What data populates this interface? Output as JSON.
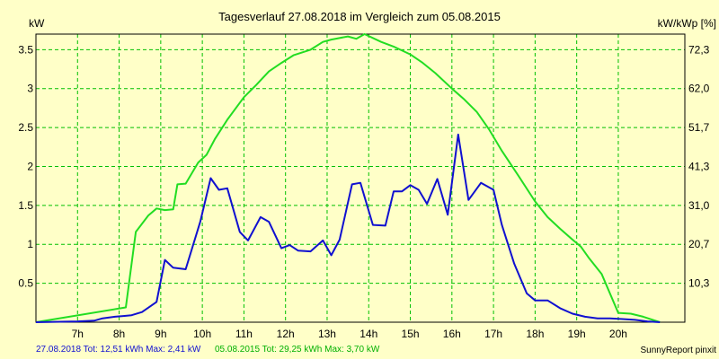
{
  "chart_data": {
    "type": "line",
    "title": "Tagesverlauf 27.08.2018 im Vergleich zum 05.08.2015",
    "y_left_label": "kW",
    "y_right_label": "kW/kWp [%]",
    "xlim": [
      6,
      21.6
    ],
    "ylim": [
      0,
      3.7
    ],
    "grid": true,
    "x_ticks": [
      {
        "v": 7,
        "label": "7h"
      },
      {
        "v": 8,
        "label": "8h"
      },
      {
        "v": 9,
        "label": "9h"
      },
      {
        "v": 10,
        "label": "10h"
      },
      {
        "v": 11,
        "label": "11h"
      },
      {
        "v": 12,
        "label": "12h"
      },
      {
        "v": 13,
        "label": "13h"
      },
      {
        "v": 14,
        "label": "14h"
      },
      {
        "v": 15,
        "label": "15h"
      },
      {
        "v": 16,
        "label": "16h"
      },
      {
        "v": 17,
        "label": "17h"
      },
      {
        "v": 18,
        "label": "18h"
      },
      {
        "v": 19,
        "label": "19h"
      },
      {
        "v": 20,
        "label": "20h"
      }
    ],
    "y_ticks_left": [
      {
        "v": 0.5,
        "label": "0.5"
      },
      {
        "v": 1,
        "label": "1"
      },
      {
        "v": 1.5,
        "label": "1.5"
      },
      {
        "v": 2,
        "label": "2"
      },
      {
        "v": 2.5,
        "label": "2.5"
      },
      {
        "v": 3,
        "label": "3"
      },
      {
        "v": 3.5,
        "label": "3.5"
      }
    ],
    "y_ticks_right": [
      {
        "v": 0.5,
        "label": "10,3"
      },
      {
        "v": 1,
        "label": "20,7"
      },
      {
        "v": 1.5,
        "label": "31,0"
      },
      {
        "v": 2,
        "label": "41,3"
      },
      {
        "v": 2.5,
        "label": "51,7"
      },
      {
        "v": 3,
        "label": "62,0"
      },
      {
        "v": 3.5,
        "label": "72,3"
      }
    ],
    "series": [
      {
        "name": "05.08.2015",
        "color": "#22DD22",
        "x": [
          6.0,
          8.16,
          8.4,
          8.7,
          8.9,
          9.1,
          9.3,
          9.4,
          9.6,
          9.9,
          10.1,
          10.3,
          10.6,
          11.0,
          11.3,
          11.6,
          11.9,
          12.2,
          12.6,
          12.9,
          13.1,
          13.5,
          13.7,
          13.9,
          14.3,
          14.6,
          15.0,
          15.3,
          15.6,
          16.0,
          16.3,
          16.6,
          16.9,
          17.2,
          17.6,
          18.0,
          18.3,
          18.6,
          18.9,
          19.1,
          19.3,
          19.6,
          20.0,
          20.3,
          20.6,
          21.0
        ],
        "y": [
          0.0,
          0.19,
          1.16,
          1.37,
          1.46,
          1.44,
          1.45,
          1.77,
          1.78,
          2.05,
          2.15,
          2.35,
          2.6,
          2.89,
          3.05,
          3.22,
          3.33,
          3.43,
          3.5,
          3.6,
          3.63,
          3.67,
          3.64,
          3.7,
          3.6,
          3.54,
          3.44,
          3.33,
          3.2,
          3.0,
          2.86,
          2.7,
          2.47,
          2.2,
          1.88,
          1.55,
          1.35,
          1.2,
          1.06,
          0.97,
          0.82,
          0.62,
          0.12,
          0.11,
          0.07,
          0.0
        ]
      },
      {
        "name": "27.08.2018",
        "color": "#1010D0",
        "x": [
          6.0,
          7.0,
          7.4,
          7.6,
          7.9,
          8.1,
          8.3,
          8.55,
          8.9,
          9.1,
          9.3,
          9.6,
          9.95,
          10.2,
          10.4,
          10.6,
          10.9,
          11.1,
          11.4,
          11.6,
          11.9,
          12.1,
          12.3,
          12.6,
          12.9,
          13.1,
          13.3,
          13.6,
          13.8,
          14.1,
          14.4,
          14.6,
          14.8,
          15.0,
          15.2,
          15.4,
          15.65,
          15.9,
          16.15,
          16.4,
          16.7,
          17.0,
          17.2,
          17.5,
          17.8,
          18.0,
          18.3,
          18.6,
          18.9,
          19.2,
          19.5,
          19.8,
          20.1,
          20.4,
          20.7,
          21.0
        ],
        "y": [
          0.0,
          0.01,
          0.02,
          0.05,
          0.07,
          0.08,
          0.09,
          0.13,
          0.26,
          0.8,
          0.7,
          0.68,
          1.29,
          1.85,
          1.7,
          1.72,
          1.16,
          1.05,
          1.35,
          1.29,
          0.95,
          0.99,
          0.92,
          0.91,
          1.05,
          0.86,
          1.06,
          1.77,
          1.79,
          1.25,
          1.24,
          1.68,
          1.68,
          1.76,
          1.7,
          1.52,
          1.84,
          1.38,
          2.41,
          1.57,
          1.79,
          1.7,
          1.25,
          0.75,
          0.37,
          0.28,
          0.28,
          0.18,
          0.11,
          0.07,
          0.05,
          0.05,
          0.04,
          0.03,
          0.01,
          0.0
        ]
      }
    ]
  },
  "footer": {
    "legend_2018": "27.08.2018 Tot: 12,51 kWh Max: 2,41 kW",
    "legend_2015": "05.08.2015 Tot: 29,25 kWh Max: 3,70 kW",
    "credit": "SunnyReport pinxit"
  },
  "colors": {
    "background": "#FFFFC8",
    "grid": "#00C000",
    "series_2015": "#22DD22",
    "series_2018": "#1010D0"
  }
}
